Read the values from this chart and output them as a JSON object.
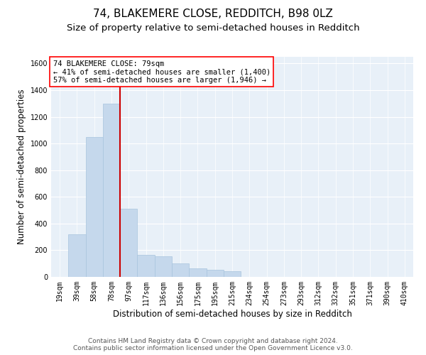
{
  "title": "74, BLAKEMERE CLOSE, REDDITCH, B98 0LZ",
  "subtitle": "Size of property relative to semi-detached houses in Redditch",
  "xlabel": "Distribution of semi-detached houses by size in Redditch",
  "ylabel": "Number of semi-detached properties",
  "footer_line1": "Contains HM Land Registry data © Crown copyright and database right 2024.",
  "footer_line2": "Contains public sector information licensed under the Open Government Licence v3.0.",
  "bar_categories": [
    "19sqm",
    "39sqm",
    "58sqm",
    "78sqm",
    "97sqm",
    "117sqm",
    "136sqm",
    "156sqm",
    "175sqm",
    "195sqm",
    "215sqm",
    "234sqm",
    "254sqm",
    "273sqm",
    "293sqm",
    "312sqm",
    "332sqm",
    "351sqm",
    "371sqm",
    "390sqm",
    "410sqm"
  ],
  "bar_values": [
    0,
    320,
    1050,
    1300,
    510,
    165,
    155,
    100,
    65,
    55,
    40,
    0,
    0,
    0,
    0,
    0,
    0,
    0,
    0,
    0,
    0
  ],
  "bar_color": "#c5d8ec",
  "bar_edge_color": "#a8c4de",
  "ylim": [
    0,
    1650
  ],
  "yticks": [
    0,
    200,
    400,
    600,
    800,
    1000,
    1200,
    1400,
    1600
  ],
  "property_line_color": "#cc0000",
  "annotation_text_line1": "74 BLAKEMERE CLOSE: 79sqm",
  "annotation_text_line2": "← 41% of semi-detached houses are smaller (1,400)",
  "annotation_text_line3": "57% of semi-detached houses are larger (1,946) →",
  "background_color": "#e8f0f8",
  "grid_color": "#ffffff",
  "title_fontsize": 11,
  "subtitle_fontsize": 9.5,
  "annotation_fontsize": 7.5,
  "tick_fontsize": 7,
  "label_fontsize": 8.5,
  "footer_fontsize": 6.5
}
